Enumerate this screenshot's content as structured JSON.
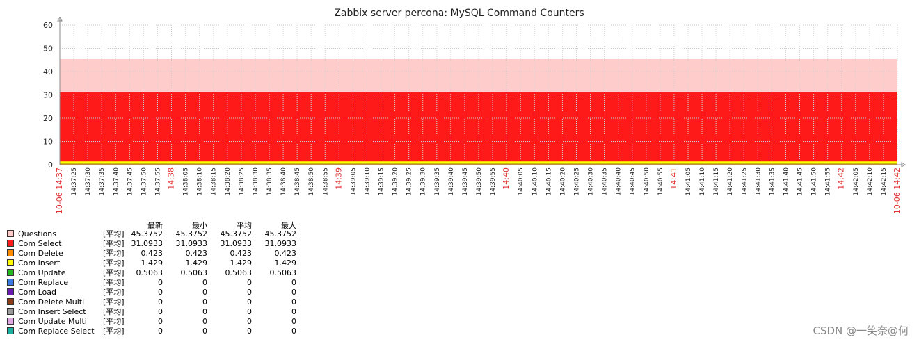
{
  "chart_data": {
    "type": "area",
    "title": "Zabbix server percona: MySQL Command Counters",
    "ylim": [
      0,
      60
    ],
    "yticks": [
      "0",
      "10",
      "20",
      "30",
      "40",
      "50",
      "60"
    ],
    "grid": true,
    "x_start_label": "10-06 14:37",
    "x_end_label": "10-06 14:42",
    "x_ticks": [
      {
        "label": "14:37:25",
        "major": false
      },
      {
        "label": "14:37:30",
        "major": false
      },
      {
        "label": "14:37:35",
        "major": false
      },
      {
        "label": "14:37:40",
        "major": false
      },
      {
        "label": "14:37:45",
        "major": false
      },
      {
        "label": "14:37:50",
        "major": false
      },
      {
        "label": "14:37:55",
        "major": false
      },
      {
        "label": "14:38",
        "major": true
      },
      {
        "label": "14:38:05",
        "major": false
      },
      {
        "label": "14:38:10",
        "major": false
      },
      {
        "label": "14:38:15",
        "major": false
      },
      {
        "label": "14:38:20",
        "major": false
      },
      {
        "label": "14:38:25",
        "major": false
      },
      {
        "label": "14:38:30",
        "major": false
      },
      {
        "label": "14:38:35",
        "major": false
      },
      {
        "label": "14:38:40",
        "major": false
      },
      {
        "label": "14:38:45",
        "major": false
      },
      {
        "label": "14:38:50",
        "major": false
      },
      {
        "label": "14:38:55",
        "major": false
      },
      {
        "label": "14:39",
        "major": true
      },
      {
        "label": "14:39:05",
        "major": false
      },
      {
        "label": "14:39:10",
        "major": false
      },
      {
        "label": "14:39:15",
        "major": false
      },
      {
        "label": "14:39:20",
        "major": false
      },
      {
        "label": "14:39:25",
        "major": false
      },
      {
        "label": "14:39:30",
        "major": false
      },
      {
        "label": "14:39:35",
        "major": false
      },
      {
        "label": "14:39:40",
        "major": false
      },
      {
        "label": "14:39:45",
        "major": false
      },
      {
        "label": "14:39:50",
        "major": false
      },
      {
        "label": "14:39:55",
        "major": false
      },
      {
        "label": "14:40",
        "major": true
      },
      {
        "label": "14:40:05",
        "major": false
      },
      {
        "label": "14:40:10",
        "major": false
      },
      {
        "label": "14:40:15",
        "major": false
      },
      {
        "label": "14:40:20",
        "major": false
      },
      {
        "label": "14:40:25",
        "major": false
      },
      {
        "label": "14:40:30",
        "major": false
      },
      {
        "label": "14:40:35",
        "major": false
      },
      {
        "label": "14:40:40",
        "major": false
      },
      {
        "label": "14:40:45",
        "major": false
      },
      {
        "label": "14:40:50",
        "major": false
      },
      {
        "label": "14:40:55",
        "major": false
      },
      {
        "label": "14:41",
        "major": true
      },
      {
        "label": "14:41:05",
        "major": false
      },
      {
        "label": "14:41:10",
        "major": false
      },
      {
        "label": "14:41:15",
        "major": false
      },
      {
        "label": "14:41:20",
        "major": false
      },
      {
        "label": "14:41:25",
        "major": false
      },
      {
        "label": "14:41:30",
        "major": false
      },
      {
        "label": "14:41:35",
        "major": false
      },
      {
        "label": "14:41:40",
        "major": false
      },
      {
        "label": "14:41:45",
        "major": false
      },
      {
        "label": "14:41:50",
        "major": false
      },
      {
        "label": "14:41:55",
        "major": false
      },
      {
        "label": "14:42",
        "major": true
      },
      {
        "label": "14:42:05",
        "major": false
      },
      {
        "label": "14:42:10",
        "major": false
      },
      {
        "label": "14:42:15",
        "major": false
      }
    ],
    "legend_headers": [
      "最新",
      "最小",
      "平均",
      "最大"
    ],
    "series": [
      {
        "name": "Questions",
        "fn": "[平均]",
        "color": "#ffcccc",
        "last": "45.3752",
        "min": "45.3752",
        "avg": "45.3752",
        "max": "45.3752",
        "value": 45.3752
      },
      {
        "name": "Com Select",
        "fn": "[平均]",
        "color": "#ff1a1a",
        "last": "31.0933",
        "min": "31.0933",
        "avg": "31.0933",
        "max": "31.0933",
        "value": 31.0933
      },
      {
        "name": "Com Delete",
        "fn": "[平均]",
        "color": "#ff8c00",
        "last": "0.423",
        "min": "0.423",
        "avg": "0.423",
        "max": "0.423",
        "value": 0.423
      },
      {
        "name": "Com Insert",
        "fn": "[平均]",
        "color": "#ffff00",
        "last": "1.429",
        "min": "1.429",
        "avg": "1.429",
        "max": "1.429",
        "value": 1.429
      },
      {
        "name": "Com Update",
        "fn": "[平均]",
        "color": "#22bb22",
        "last": "0.5063",
        "min": "0.5063",
        "avg": "0.5063",
        "max": "0.5063",
        "value": 0.5063
      },
      {
        "name": "Com Replace",
        "fn": "[平均]",
        "color": "#3a7ae0",
        "last": "0",
        "min": "0",
        "avg": "0",
        "max": "0",
        "value": 0
      },
      {
        "name": "Com Load",
        "fn": "[平均]",
        "color": "#6a1ab0",
        "last": "0",
        "min": "0",
        "avg": "0",
        "max": "0",
        "value": 0
      },
      {
        "name": "Com Delete Multi",
        "fn": "[平均]",
        "color": "#8b3a1a",
        "last": "0",
        "min": "0",
        "avg": "0",
        "max": "0",
        "value": 0
      },
      {
        "name": "Com Insert Select",
        "fn": "[平均]",
        "color": "#9a9a9a",
        "last": "0",
        "min": "0",
        "avg": "0",
        "max": "0",
        "value": 0
      },
      {
        "name": "Com Update Multi",
        "fn": "[平均]",
        "color": "#e0a8e0",
        "last": "0",
        "min": "0",
        "avg": "0",
        "max": "0",
        "value": 0
      },
      {
        "name": "Com Replace Select",
        "fn": "[平均]",
        "color": "#1ab0a0",
        "last": "0",
        "min": "0",
        "avg": "0",
        "max": "0",
        "value": 0
      }
    ]
  },
  "watermark": "CSDN @一笑奈@何"
}
